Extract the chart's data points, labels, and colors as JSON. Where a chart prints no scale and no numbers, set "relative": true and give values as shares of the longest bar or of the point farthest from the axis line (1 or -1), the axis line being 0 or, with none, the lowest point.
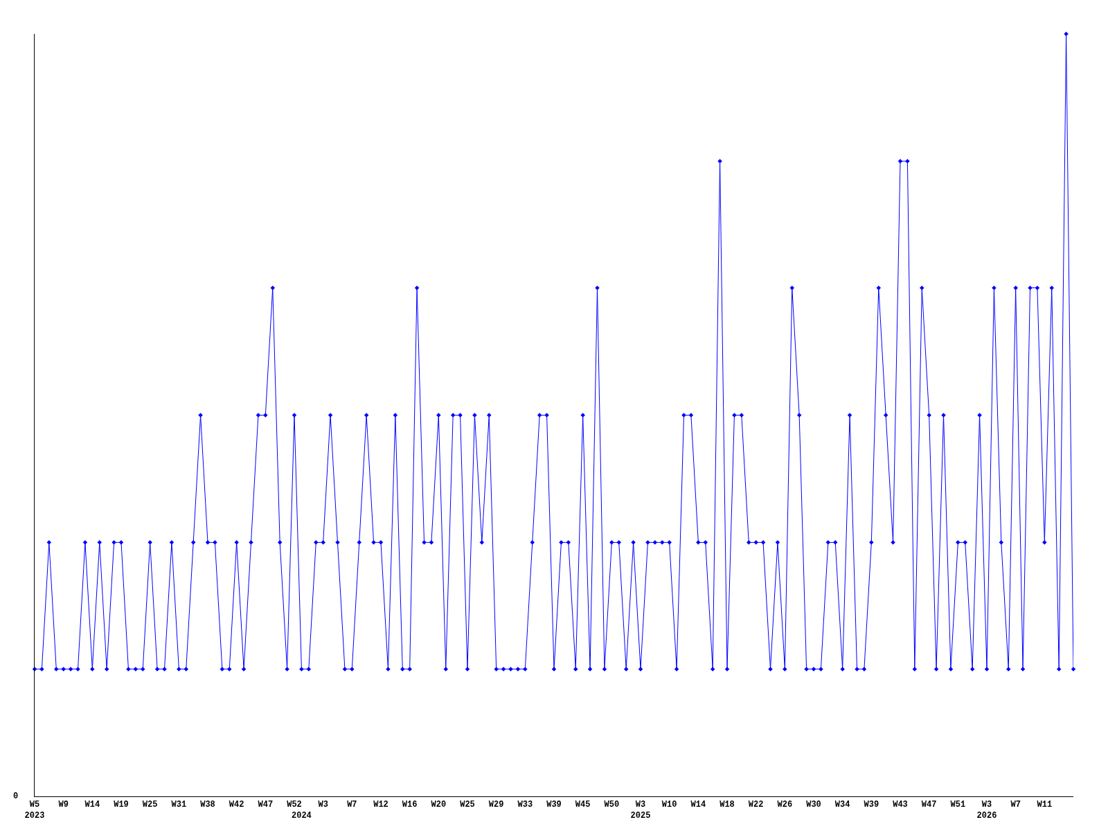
{
  "chart_data": {
    "type": "line",
    "relative": true,
    "annotations": [
      "0"
    ],
    "color": "#0000ff",
    "marker": "diamond",
    "line_style": "solid",
    "grid": false,
    "categories": [
      "W5\n2023",
      null,
      null,
      null,
      "W9",
      null,
      null,
      null,
      "W14",
      null,
      null,
      null,
      "W19",
      null,
      null,
      null,
      "W25",
      null,
      null,
      null,
      "W31",
      null,
      null,
      null,
      "W38",
      null,
      null,
      null,
      "W42",
      null,
      null,
      null,
      "W47",
      null,
      null,
      null,
      "W52",
      "\n2024",
      null,
      null,
      "W3",
      null,
      null,
      null,
      "W7",
      null,
      null,
      null,
      "W12",
      null,
      null,
      null,
      "W16",
      null,
      null,
      null,
      "W20",
      null,
      null,
      null,
      "W25",
      null,
      null,
      null,
      "W29",
      null,
      null,
      null,
      "W33",
      null,
      null,
      null,
      "W39",
      null,
      null,
      null,
      "W45",
      null,
      null,
      null,
      "W50",
      null,
      null,
      null,
      "W3\n2025",
      null,
      null,
      null,
      "W10",
      null,
      null,
      null,
      "W14",
      null,
      null,
      null,
      "W18",
      null,
      null,
      null,
      "W22",
      null,
      null,
      null,
      "W26",
      null,
      null,
      null,
      "W30",
      null,
      null,
      null,
      "W34",
      null,
      null,
      null,
      "W39",
      null,
      null,
      null,
      "W43",
      null,
      null,
      null,
      "W47",
      null,
      null,
      null,
      "W51",
      null,
      null,
      null,
      "W3\n2026",
      null,
      null,
      null,
      "W7",
      null,
      null,
      null,
      "W11",
      null,
      null,
      null,
      null
    ],
    "values": [
      0.167,
      0.167,
      0.333,
      0.167,
      0.167,
      0.167,
      0.167,
      0.333,
      0.167,
      0.333,
      0.167,
      0.333,
      0.333,
      0.167,
      0.167,
      0.167,
      0.333,
      0.167,
      0.167,
      0.333,
      0.167,
      0.167,
      0.333,
      0.5,
      0.333,
      0.333,
      0.167,
      0.167,
      0.333,
      0.167,
      0.333,
      0.5,
      0.5,
      0.667,
      0.333,
      0.167,
      0.5,
      0.167,
      0.167,
      0.333,
      0.333,
      0.5,
      0.333,
      0.167,
      0.167,
      0.333,
      0.5,
      0.333,
      0.333,
      0.167,
      0.5,
      0.167,
      0.167,
      0.667,
      0.333,
      0.333,
      0.5,
      0.167,
      0.5,
      0.5,
      0.167,
      0.5,
      0.333,
      0.5,
      0.167,
      0.167,
      0.167,
      0.167,
      0.167,
      0.333,
      0.5,
      0.5,
      0.167,
      0.333,
      0.333,
      0.167,
      0.5,
      0.167,
      0.667,
      0.167,
      0.333,
      0.333,
      0.167,
      0.333,
      0.167,
      0.333,
      0.333,
      0.333,
      0.333,
      0.167,
      0.5,
      0.5,
      0.333,
      0.333,
      0.167,
      0.833,
      0.167,
      0.5,
      0.5,
      0.333,
      0.333,
      0.333,
      0.167,
      0.333,
      0.167,
      0.667,
      0.5,
      0.167,
      0.167,
      0.167,
      0.333,
      0.333,
      0.167,
      0.5,
      0.167,
      0.167,
      0.333,
      0.667,
      0.5,
      0.333,
      0.833,
      0.833,
      0.167,
      0.667,
      0.5,
      0.167,
      0.5,
      0.167,
      0.333,
      0.333,
      0.167,
      0.5,
      0.167,
      0.667,
      0.333,
      0.167,
      0.667,
      0.167,
      0.667,
      0.667,
      0.333,
      0.667,
      0.167,
      1,
      0.167
    ]
  }
}
